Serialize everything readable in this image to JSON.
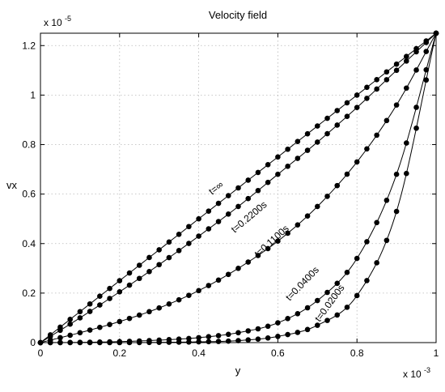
{
  "chart_data": {
    "type": "line",
    "title": "Velocity field",
    "xlabel": "y",
    "ylabel": "vx",
    "x_multiplier": "x 10",
    "x_multiplier_exp": "-3",
    "y_multiplier": "x 10",
    "y_multiplier_exp": "-5",
    "xlim": [
      0,
      0.001
    ],
    "ylim": [
      0,
      1.25e-05
    ],
    "grid": true,
    "xticks": [
      0,
      0.0002,
      0.0004,
      0.0006,
      0.0008,
      0.001
    ],
    "xtick_labels": [
      "0",
      "0.2",
      "0.4",
      "0.6",
      "0.8",
      "1"
    ],
    "yticks": [
      0,
      2e-06,
      4e-06,
      6e-06,
      8e-06,
      1e-05,
      1.2e-05
    ],
    "ytick_labels": [
      "0",
      "0.2",
      "0.4",
      "0.6",
      "0.8",
      "1",
      "1.2"
    ],
    "series": [
      {
        "name": "t=∞",
        "x": [
          0,
          0.0001,
          0.0002,
          0.0003,
          0.0004,
          0.0005,
          0.0006,
          0.0007,
          0.0008,
          0.0009,
          0.001
        ],
        "y": [
          0,
          1.25e-06,
          2.5e-06,
          3.75e-06,
          5e-06,
          6.25e-06,
          7.5e-06,
          8.75e-06,
          1e-05,
          1.125e-05,
          1.25e-05
        ]
      },
      {
        "name": "t=0.2200s",
        "x": [
          0,
          0.0001,
          0.0002,
          0.0003,
          0.0004,
          0.0005,
          0.0006,
          0.0007,
          0.0008,
          0.0009,
          0.001
        ],
        "y": [
          0,
          1e-06,
          2.05e-06,
          3.15e-06,
          4.3e-06,
          5.5e-06,
          6.8e-06,
          8.1e-06,
          9.5e-06,
          1.1e-05,
          1.25e-05
        ]
      },
      {
        "name": "t=0.1100s",
        "x": [
          0,
          0.0001,
          0.0002,
          0.0003,
          0.0004,
          0.0005,
          0.0006,
          0.0007,
          0.0008,
          0.0009,
          0.001
        ],
        "y": [
          0,
          4e-07,
          8.5e-07,
          1.4e-06,
          2.1e-06,
          3e-06,
          4.1e-06,
          5.5e-06,
          7.3e-06,
          9.6e-06,
          1.25e-05
        ]
      },
      {
        "name": "t=0.0400s",
        "x": [
          0,
          0.0001,
          0.0002,
          0.0003,
          0.0004,
          0.0005,
          0.0006,
          0.0007,
          0.0008,
          0.0009,
          0.001
        ],
        "y": [
          0,
          1e-08,
          4e-08,
          1e-07,
          2e-07,
          4e-07,
          8e-07,
          1.7e-06,
          3.4e-06,
          6.8e-06,
          1.25e-05
        ]
      },
      {
        "name": "t=0.0200s",
        "x": [
          0,
          0.0001,
          0.0002,
          0.0003,
          0.0004,
          0.0005,
          0.0006,
          0.0007,
          0.0008,
          0.0009,
          0.001
        ],
        "y": [
          0,
          0,
          0,
          1e-08,
          3e-08,
          8e-08,
          2.5e-07,
          7e-07,
          1.9e-06,
          5.3e-06,
          1.25e-05
        ]
      }
    ]
  }
}
